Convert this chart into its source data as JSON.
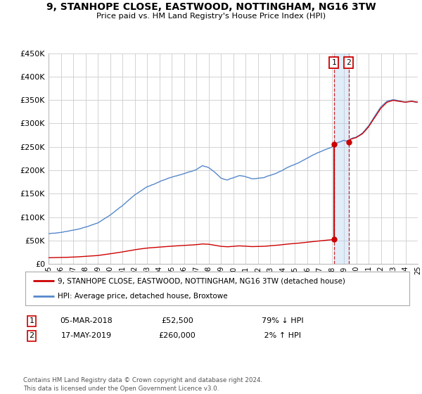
{
  "title": "9, STANHOPE CLOSE, EASTWOOD, NOTTINGHAM, NG16 3TW",
  "subtitle": "Price paid vs. HM Land Registry's House Price Index (HPI)",
  "xlim": [
    1995,
    2025
  ],
  "ylim": [
    0,
    450000
  ],
  "yticks": [
    0,
    50000,
    100000,
    150000,
    200000,
    250000,
    300000,
    350000,
    400000,
    450000
  ],
  "ytick_labels": [
    "£0",
    "£50K",
    "£100K",
    "£150K",
    "£200K",
    "£250K",
    "£300K",
    "£350K",
    "£400K",
    "£450K"
  ],
  "hpi_color": "#5588cc",
  "price_color": "#cc0000",
  "background_color": "#ffffff",
  "grid_color": "#cccccc",
  "t1": 2018.18,
  "p1": 52500,
  "hpi_at_t1": 255000,
  "t2": 2019.38,
  "p2": 260000,
  "hpi_at_t2": 262000,
  "legend_label_price": "9, STANHOPE CLOSE, EASTWOOD, NOTTINGHAM, NG16 3TW (detached house)",
  "legend_label_hpi": "HPI: Average price, detached house, Broxtowe",
  "footer": "Contains HM Land Registry data © Crown copyright and database right 2024.\nThis data is licensed under the Open Government Licence v3.0."
}
